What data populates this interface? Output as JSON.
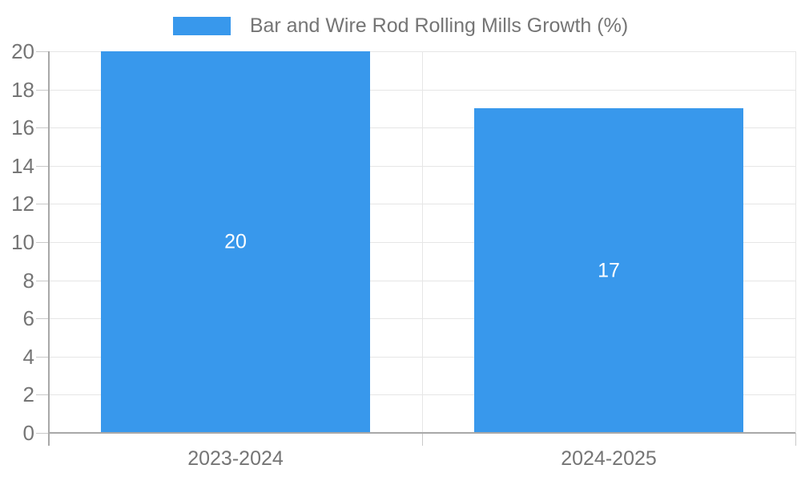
{
  "chart_data": {
    "type": "bar",
    "title": "Bar and Wire Rod Rolling Mills Growth (%)",
    "legend": "Bar and Wire Rod Rolling Mills Growth (%)",
    "legend_position": "top",
    "categories": [
      "2023-2024",
      "2024-2025"
    ],
    "values": [
      20,
      17
    ],
    "bar_labels": [
      "20",
      "17"
    ],
    "xlabel": "",
    "ylabel": "",
    "ylim": [
      0,
      20
    ],
    "ytick_step": 2,
    "ytick_labels": [
      "0",
      "2",
      "4",
      "6",
      "8",
      "10",
      "12",
      "14",
      "16",
      "18",
      "20"
    ],
    "grid": true,
    "colors": {
      "bar": "#3898EC",
      "axis_label_text": "#757575",
      "bar_label_text": "#FFFFFF",
      "gridline": "#E6E6E6",
      "tick": "#C9C9C9",
      "axis_line": "#A8A8A8"
    }
  }
}
